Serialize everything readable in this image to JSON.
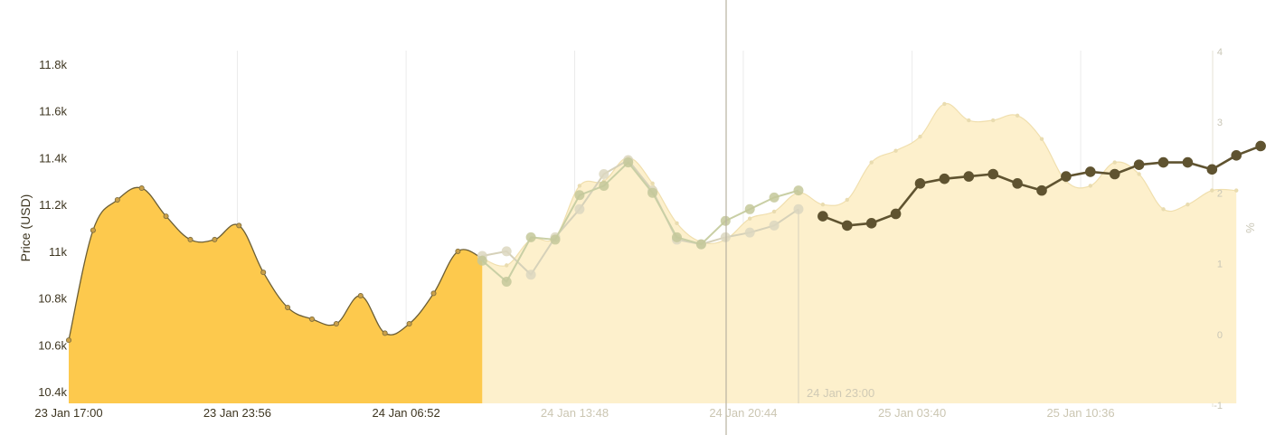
{
  "chart_data": {
    "type": "area",
    "ylabel": "Price (USD)",
    "y2label": "%",
    "ylim": [
      10350,
      11850
    ],
    "y2lim": [
      -1,
      4
    ],
    "yticks": [
      "10.4k",
      "10.6k",
      "10.8k",
      "11k",
      "11.2k",
      "11.4k",
      "11.6k",
      "11.8k"
    ],
    "ytick_values": [
      10400,
      10600,
      10800,
      11000,
      11200,
      11400,
      11600,
      11800
    ],
    "y2ticks": [
      "-1",
      "0",
      "1",
      "2",
      "3",
      "4"
    ],
    "y2tick_values": [
      -1,
      0,
      1,
      2,
      3,
      4
    ],
    "xlim_hours": [
      0,
      67.6
    ],
    "xticks": [
      {
        "label": "23 Jan 17:00",
        "h": 0,
        "faded": false
      },
      {
        "label": "23 Jan 23:56",
        "h": 6.93,
        "faded": false
      },
      {
        "label": "24 Jan 06:52",
        "h": 13.87,
        "faded": false
      },
      {
        "label": "24 Jan 13:48",
        "h": 20.8,
        "faded": true
      },
      {
        "label": "24 Jan 20:44",
        "h": 27.73,
        "faded": true
      },
      {
        "label": "25 Jan 03:40",
        "h": 34.67,
        "faded": true
      },
      {
        "label": "25 Jan 10:36",
        "h": 41.6,
        "faded": true
      }
    ],
    "cursor_hour": 30,
    "cursor_label": "24 Jan 23:00",
    "split_hour": 17,
    "actual": [
      [
        0,
        10620
      ],
      [
        1,
        11090
      ],
      [
        2,
        11220
      ],
      [
        3,
        11270
      ],
      [
        4,
        11150
      ],
      [
        5,
        11050
      ],
      [
        6,
        11050
      ],
      [
        7,
        11110
      ],
      [
        8,
        10910
      ],
      [
        9,
        10760
      ],
      [
        10,
        10710
      ],
      [
        11,
        10690
      ],
      [
        12,
        10810
      ],
      [
        13,
        10650
      ],
      [
        14,
        10690
      ],
      [
        15,
        10820
      ],
      [
        16,
        11000
      ],
      [
        17,
        10970
      ]
    ],
    "forecast_area": [
      [
        17,
        10970
      ],
      [
        18,
        10940
      ],
      [
        19,
        11050
      ],
      [
        20,
        11060
      ],
      [
        21,
        11280
      ],
      [
        22,
        11300
      ],
      [
        23,
        11400
      ],
      [
        24,
        11290
      ],
      [
        25,
        11120
      ],
      [
        26,
        11040
      ],
      [
        27,
        11050
      ],
      [
        28,
        11140
      ],
      [
        29,
        11170
      ],
      [
        30,
        11250
      ],
      [
        31,
        11200
      ],
      [
        32,
        11220
      ],
      [
        33,
        11380
      ],
      [
        34,
        11430
      ],
      [
        35,
        11490
      ],
      [
        36,
        11630
      ],
      [
        37,
        11560
      ],
      [
        38,
        11560
      ],
      [
        39,
        11580
      ],
      [
        40,
        11480
      ],
      [
        41,
        11300
      ],
      [
        42,
        11280
      ],
      [
        43,
        11380
      ],
      [
        44,
        11330
      ],
      [
        45,
        11180
      ],
      [
        46,
        11200
      ],
      [
        47,
        11260
      ],
      [
        48,
        11260
      ]
    ],
    "series": [
      {
        "name": "",
        "values": [
          [
            17,
            10980
          ],
          [
            18,
            11000
          ],
          [
            19,
            10900
          ],
          [
            20,
            11060
          ],
          [
            21,
            11180
          ],
          [
            22,
            11330
          ],
          [
            23,
            11390
          ],
          [
            24,
            11260
          ],
          [
            25,
            11050
          ],
          [
            26,
            11030
          ],
          [
            27,
            11060
          ],
          [
            28,
            11080
          ],
          [
            29,
            11110
          ],
          [
            30,
            11180
          ]
        ]
      },
      {
        "name": "",
        "values": [
          [
            17,
            10960
          ],
          [
            18,
            10870
          ],
          [
            19,
            11060
          ],
          [
            20,
            11050
          ],
          [
            21,
            11240
          ],
          [
            22,
            11280
          ],
          [
            23,
            11380
          ],
          [
            24,
            11250
          ],
          [
            25,
            11060
          ],
          [
            26,
            11030
          ],
          [
            27,
            11130
          ],
          [
            28,
            11180
          ],
          [
            29,
            11230
          ],
          [
            30,
            11260
          ]
        ]
      },
      {
        "name": "",
        "values": [
          [
            31,
            11150
          ],
          [
            32,
            11110
          ],
          [
            33,
            11120
          ],
          [
            34,
            11160
          ],
          [
            35,
            11290
          ],
          [
            36,
            11310
          ],
          [
            37,
            11320
          ],
          [
            38,
            11330
          ],
          [
            39,
            11290
          ],
          [
            40,
            11260
          ],
          [
            41,
            11320
          ],
          [
            42,
            11340
          ],
          [
            43,
            11330
          ],
          [
            44,
            11370
          ],
          [
            45,
            11380
          ],
          [
            46,
            11380
          ],
          [
            47,
            11350
          ],
          [
            48,
            11410
          ],
          [
            49,
            11450
          ]
        ]
      }
    ],
    "colors": {
      "actual_fill": "#fdc94d",
      "actual_line": "#6b5e35",
      "forecast_fill": "#fdf0cc",
      "faded_line_1": "#d6d1b9",
      "faded_line_2": "#c9cfa5",
      "dark_line": "#5f5330",
      "grid": "#ebebeb",
      "cursor": "#b8b2a0"
    }
  }
}
